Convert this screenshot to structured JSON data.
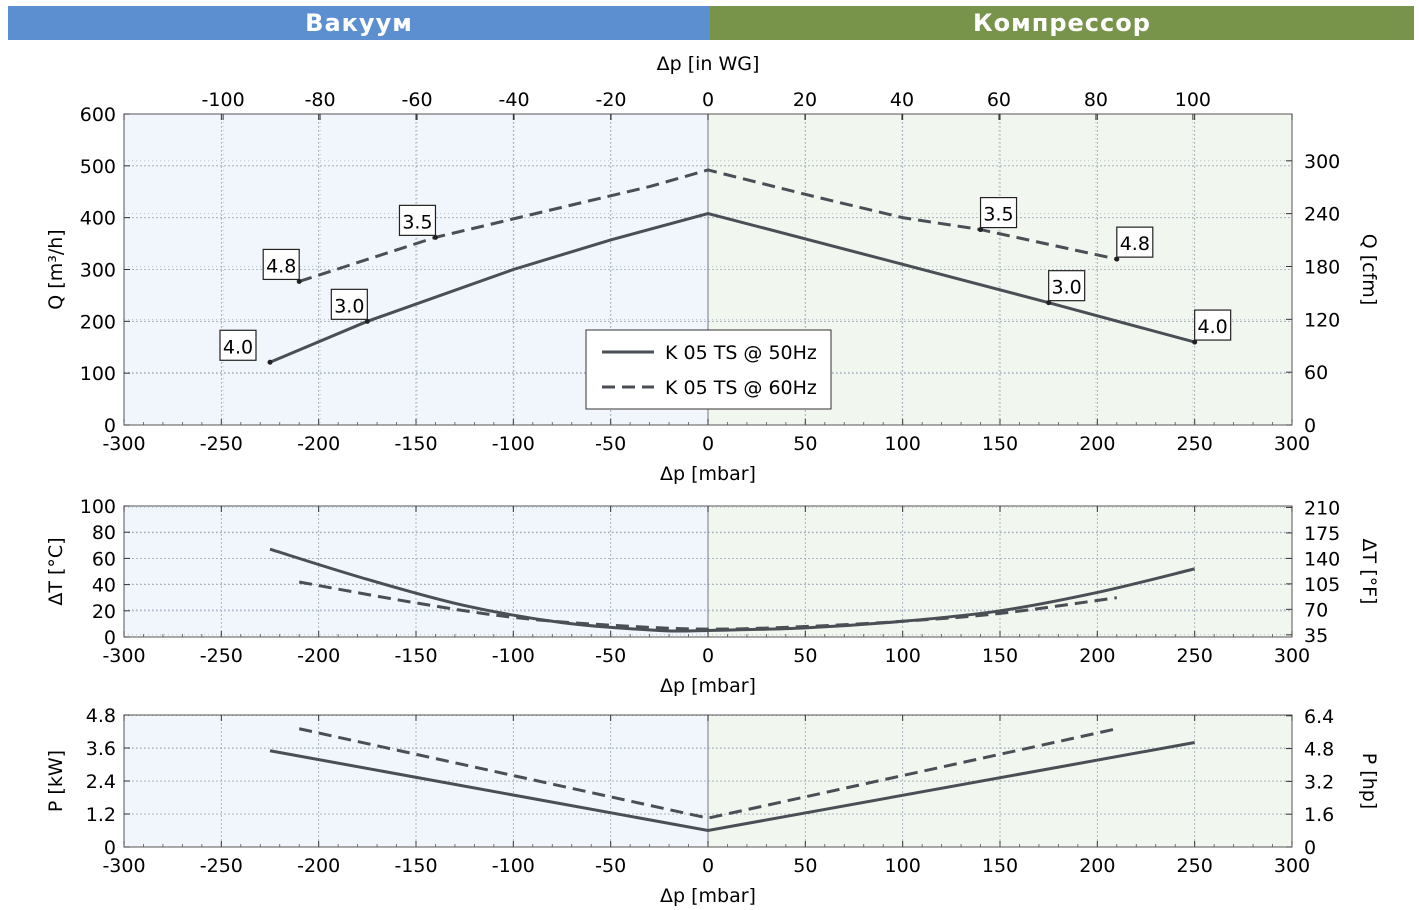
{
  "header": {
    "left_label": "Вакуум",
    "right_label": "Компрессор",
    "left_color": "#5b8fcf",
    "right_color": "#77944a"
  },
  "colors": {
    "vacuum_bg": "#f1f6fc",
    "compressor_bg": "#f1f6ee",
    "line": "#4a4f55",
    "grid": "#9aa7b5"
  },
  "chart_data": [
    {
      "id": "flow",
      "type": "line",
      "xlabel": "Δp [mbar]",
      "x2label": "Δp [in WG]",
      "ylabel": "Q [m³/h]",
      "y2label": "Q [cfm]",
      "xlim": [
        -300,
        300
      ],
      "ylim": [
        0,
        600
      ],
      "x2lim": [
        -120.44,
        120.44
      ],
      "y2lim": [
        0,
        353.15
      ],
      "xticks": [
        -300,
        -250,
        -200,
        -150,
        -100,
        -50,
        0,
        50,
        100,
        150,
        200,
        250,
        300
      ],
      "yticks": [
        0,
        100,
        200,
        300,
        400,
        500,
        600
      ],
      "x2ticks": [
        -100,
        -80,
        -60,
        -40,
        -20,
        0,
        20,
        40,
        60,
        80,
        100
      ],
      "y2ticks": [
        0,
        60,
        120,
        180,
        240,
        300
      ],
      "grid": true,
      "legend": {
        "placement": "bottom-center",
        "entries": [
          {
            "label": "K 05 TS @ 50Hz",
            "dash": false
          },
          {
            "label": "K 05 TS @ 60Hz",
            "dash": true
          }
        ]
      },
      "series": [
        {
          "name": "K 05 TS @ 50Hz",
          "dash": false,
          "x": [
            -225,
            -175,
            -100,
            -50,
            0,
            100,
            175,
            250
          ],
          "y": [
            121,
            200,
            300,
            357,
            408,
            310,
            236,
            160
          ]
        },
        {
          "name": "K 05 TS @ 60Hz",
          "dash": true,
          "x": [
            -210,
            -140,
            -75,
            -30,
            0,
            50,
            100,
            140,
            210
          ],
          "y": [
            277,
            362,
            420,
            460,
            492,
            445,
            400,
            377,
            320
          ]
        }
      ],
      "annotations": [
        {
          "text": "4.0",
          "x": -225,
          "y": 121,
          "dx": -32,
          "dy": -16
        },
        {
          "text": "3.0",
          "x": -175,
          "y": 200,
          "dx": -18,
          "dy": -16
        },
        {
          "text": "4.8",
          "x": -210,
          "y": 277,
          "dx": -18,
          "dy": -16
        },
        {
          "text": "3.5",
          "x": -140,
          "y": 362,
          "dx": -18,
          "dy": -16
        },
        {
          "text": "3.5",
          "x": 140,
          "y": 377,
          "dx": 18,
          "dy": -16
        },
        {
          "text": "4.8",
          "x": 210,
          "y": 320,
          "dx": 18,
          "dy": -16
        },
        {
          "text": "3.0",
          "x": 175,
          "y": 236,
          "dx": 18,
          "dy": -16
        },
        {
          "text": "4.0",
          "x": 250,
          "y": 160,
          "dx": 18,
          "dy": -16
        }
      ]
    },
    {
      "id": "temp",
      "type": "line",
      "xlabel": "Δp [mbar]",
      "ylabel": "ΔT [°C]",
      "y2label": "ΔT [°F]",
      "xlim": [
        -300,
        300
      ],
      "ylim": [
        0,
        100
      ],
      "y2lim": [
        32,
        212
      ],
      "xticks": [
        -300,
        -250,
        -200,
        -150,
        -100,
        -50,
        0,
        50,
        100,
        150,
        200,
        250,
        300
      ],
      "yticks": [
        0,
        20,
        40,
        60,
        80,
        100
      ],
      "y2ticks": [
        35,
        70,
        105,
        140,
        175,
        210
      ],
      "grid": true,
      "series": [
        {
          "name": "K 05 TS @ 50Hz",
          "dash": false,
          "x": [
            -225,
            -175,
            -125,
            -75,
            -25,
            0,
            50,
            100,
            150,
            200,
            250
          ],
          "y": [
            67,
            44,
            24,
            11,
            5,
            5,
            7,
            12,
            20,
            34,
            52
          ]
        },
        {
          "name": "K 05 TS @ 60Hz",
          "dash": true,
          "x": [
            -210,
            -150,
            -100,
            -50,
            0,
            50,
            100,
            150,
            210
          ],
          "y": [
            42,
            26,
            15,
            9,
            6,
            8,
            12,
            18,
            30
          ]
        }
      ]
    },
    {
      "id": "power",
      "type": "line",
      "xlabel": "Δp [mbar]",
      "ylabel": "P [kW]",
      "y2label": "P [hp]",
      "xlim": [
        -300,
        300
      ],
      "ylim": [
        0,
        4.8
      ],
      "y2lim": [
        0,
        6.437
      ],
      "xticks": [
        -300,
        -250,
        -200,
        -150,
        -100,
        -50,
        0,
        50,
        100,
        150,
        200,
        250,
        300
      ],
      "yticks": [
        0,
        1.2,
        2.4,
        3.6,
        4.8
      ],
      "ytick_labels": [
        "0",
        "1.2",
        "2.4",
        "3.6",
        "4.8"
      ],
      "y2ticks": [
        0,
        1.6,
        3.2,
        4.8,
        6.4
      ],
      "y2tick_labels": [
        "0",
        "1.6",
        "3.2",
        "4.8",
        "6.4"
      ],
      "grid": true,
      "series": [
        {
          "name": "K 05 TS @ 50Hz",
          "dash": false,
          "x": [
            -225,
            0,
            250
          ],
          "y": [
            3.5,
            0.6,
            3.8
          ]
        },
        {
          "name": "K 05 TS @ 60Hz",
          "dash": true,
          "x": [
            -210,
            0,
            210
          ],
          "y": [
            4.3,
            1.05,
            4.3
          ]
        }
      ]
    }
  ]
}
